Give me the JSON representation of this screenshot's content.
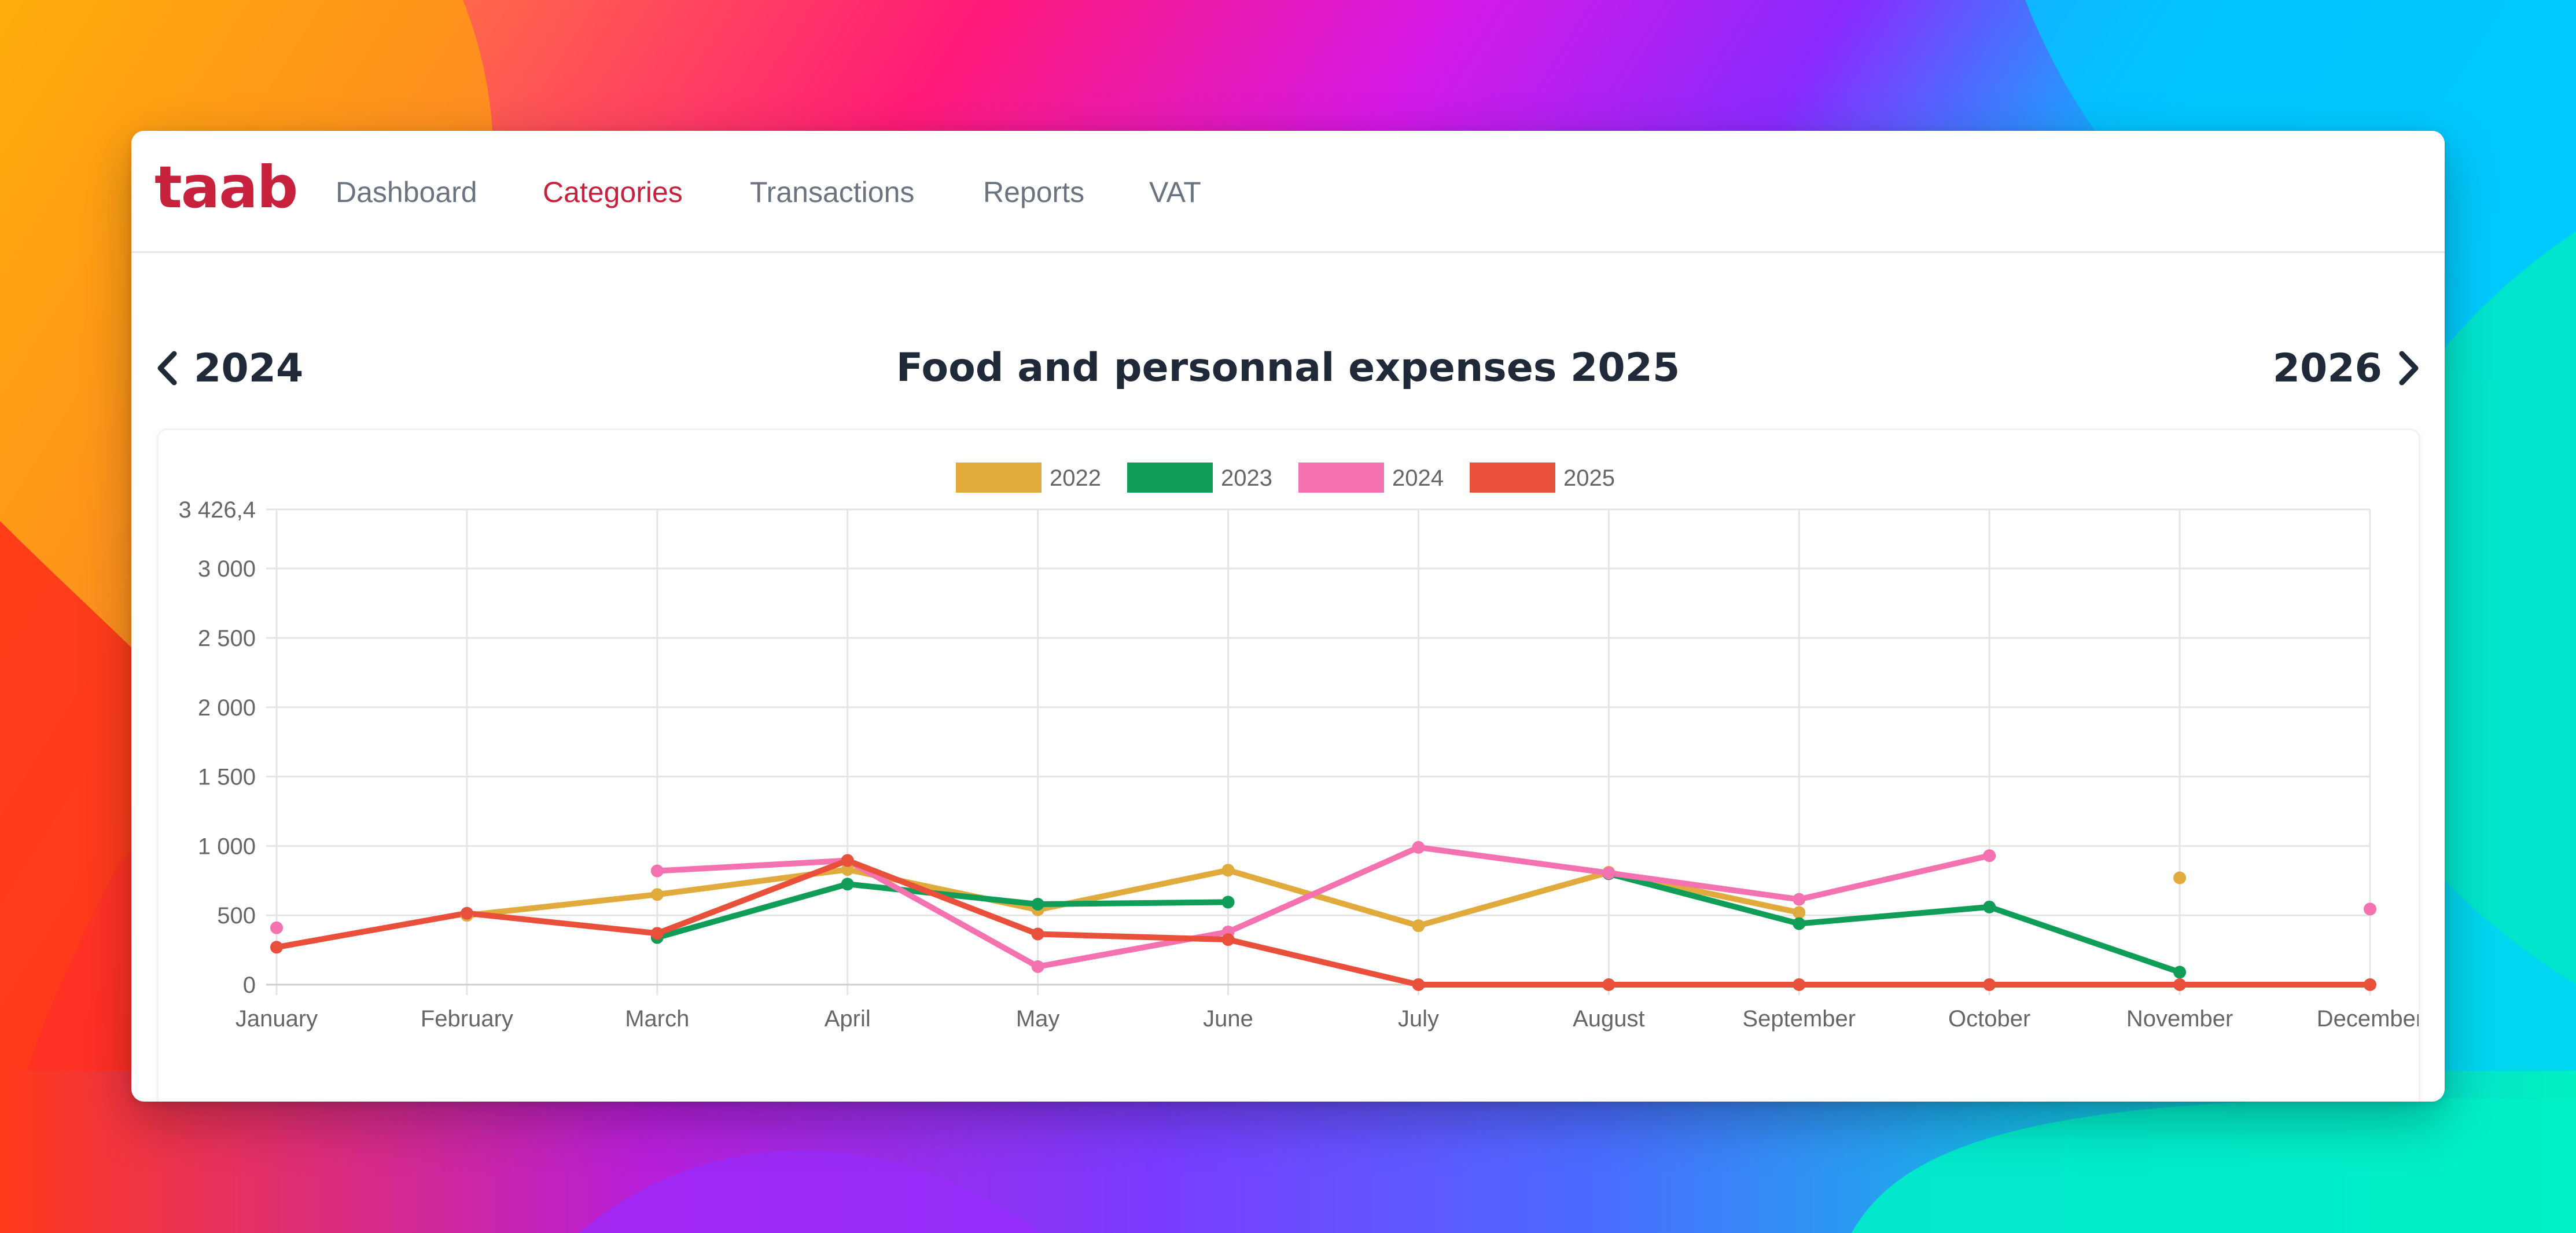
{
  "app": {
    "logo": "taab",
    "logo_color": "#c8213e",
    "nav": [
      {
        "label": "Dashboard",
        "active": false
      },
      {
        "label": "Categories",
        "active": true
      },
      {
        "label": "Transactions",
        "active": false
      },
      {
        "label": "Reports",
        "active": false
      },
      {
        "label": "VAT",
        "active": false
      }
    ]
  },
  "page": {
    "title": "Food and personnal expenses 2025",
    "prev_year": "2024",
    "next_year": "2026",
    "prev_icon": "chevron-left-icon",
    "next_icon": "chevron-right-icon"
  },
  "chart_data": {
    "type": "line",
    "categories": [
      "January",
      "February",
      "March",
      "April",
      "May",
      "June",
      "July",
      "August",
      "September",
      "October",
      "November",
      "December"
    ],
    "y_ticks": [
      0,
      500,
      1000,
      1500,
      2000,
      2500,
      3000
    ],
    "y_tick_labels": [
      "0",
      "500",
      "1 000",
      "1 500",
      "2 000",
      "2 500",
      "3 000"
    ],
    "y_max_label": "3 426,4",
    "ylim": [
      0,
      3426.4
    ],
    "grid": true,
    "legend_position": "top-center",
    "series": [
      {
        "name": "2022",
        "color": "#e0ab3c",
        "values": [
          null,
          500,
          650,
          830,
          540,
          825,
          425,
          810,
          520,
          null,
          770,
          null
        ]
      },
      {
        "name": "2023",
        "color": "#109d58",
        "values": [
          null,
          null,
          340,
          725,
          580,
          595,
          null,
          800,
          440,
          560,
          90,
          null
        ]
      },
      {
        "name": "2024",
        "color": "#f472b0",
        "values": [
          410,
          null,
          820,
          895,
          130,
          380,
          990,
          805,
          615,
          930,
          null,
          545
        ]
      },
      {
        "name": "2025",
        "color": "#e8503b",
        "values": [
          270,
          515,
          370,
          895,
          365,
          325,
          0,
          0,
          0,
          0,
          0,
          0
        ]
      }
    ]
  }
}
